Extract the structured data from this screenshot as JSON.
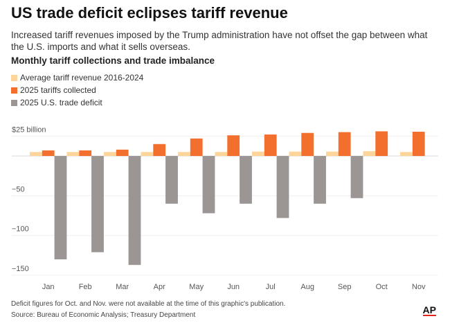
{
  "title": "US trade deficit eclipses tariff revenue",
  "subtitle": "Increased tariff revenues imposed by the Trump administration have not offset the gap between what the U.S. imports and what it sells overseas.",
  "chart_data": {
    "type": "bar",
    "title": "Monthly tariff collections and trade imbalance",
    "categories": [
      "Jan",
      "Feb",
      "Mar",
      "Apr",
      "May",
      "Jun",
      "Jul",
      "Aug",
      "Sep",
      "Oct",
      "Nov"
    ],
    "series": [
      {
        "name": "Average tariff revenue 2016-2024",
        "color": "#fdd499",
        "values": [
          5,
          5,
          5,
          5,
          5,
          5,
          5.5,
          5.5,
          5.5,
          6,
          5
        ]
      },
      {
        "name": "2025 tariffs collected",
        "color": "#f26f2e",
        "values": [
          7,
          7,
          8,
          15,
          22,
          26,
          27,
          29,
          30,
          31,
          30.5
        ]
      },
      {
        "name": "2025 U.S. trade deficit",
        "color": "#9b9594",
        "values": [
          -130,
          -121,
          -137,
          -60,
          -72,
          -60,
          -78,
          -60,
          -53,
          null,
          null
        ]
      }
    ],
    "yticks": [
      {
        "value": 25,
        "label": "$25 billion"
      },
      {
        "value": 0,
        "label": ""
      },
      {
        "value": -50,
        "label": "−50"
      },
      {
        "value": -100,
        "label": "−100"
      },
      {
        "value": -150,
        "label": "−150"
      }
    ],
    "ylim": [
      -150,
      25
    ],
    "grid": true,
    "legend_placement": "top-left"
  },
  "footnote": "Deficit figures for Oct. and Nov. were not available at the time of this graphic's publication.",
  "source": "Source: Bureau of Economic Analysis; Treasury Department",
  "logo": "AP"
}
